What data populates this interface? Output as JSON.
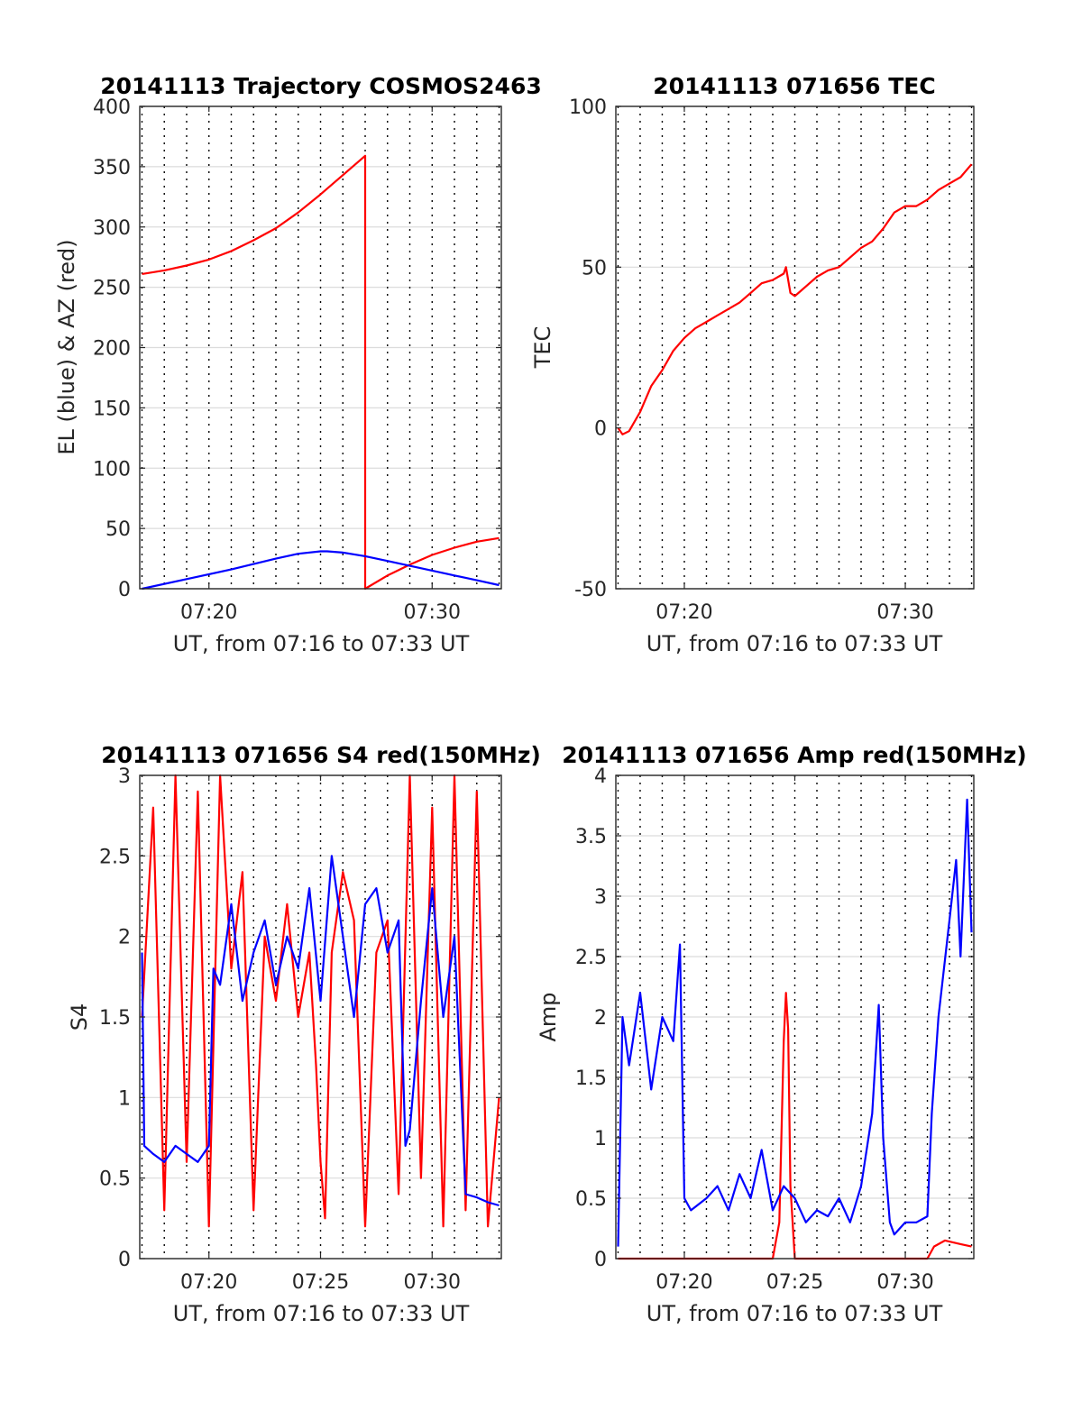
{
  "chart_data": [
    {
      "type": "line",
      "title": "20141113 Trajectory COSMOS2463",
      "xlabel": "UT, from 07:16 to 07:33 UT",
      "ylabel": "EL (blue) & AZ (red)",
      "xlim": [
        16.9,
        33.1
      ],
      "ylim": [
        0,
        400
      ],
      "xticks": [
        20,
        30
      ],
      "xtick_labels": [
        "07:20",
        "07:30"
      ],
      "yticks": [
        0,
        50,
        100,
        150,
        200,
        250,
        300,
        350,
        400
      ],
      "ytick_labels": [
        "0",
        "50",
        "100",
        "150",
        "200",
        "250",
        "300",
        "350",
        "400"
      ],
      "grid": true,
      "series": [
        {
          "color": "#ff0000",
          "x": [
            17.0,
            18.0,
            19.0,
            20.0,
            21.0,
            22.0,
            23.0,
            24.0,
            25.0,
            26.0,
            27.0,
            27.0,
            27.0,
            28.0,
            29.0,
            30.0,
            31.0,
            32.0,
            33.0
          ],
          "y": [
            261,
            264,
            268,
            273,
            280,
            289,
            299,
            312,
            327,
            343,
            359,
            359,
            0,
            11,
            20,
            28,
            34,
            39,
            42
          ]
        },
        {
          "color": "#0000ff",
          "x": [
            17.0,
            19.0,
            21.0,
            23.0,
            24.0,
            25.0,
            25.3,
            26.0,
            27.0,
            28.0,
            29.0,
            30.0,
            31.0,
            32.0,
            33.0
          ],
          "y": [
            0,
            8,
            16,
            25,
            29,
            31,
            31,
            30,
            27,
            23,
            19,
            15,
            11,
            7,
            3
          ]
        }
      ]
    },
    {
      "type": "line",
      "title": "20141113 071656 TEC",
      "xlabel": "UT, from 07:16 to 07:33 UT",
      "ylabel": "TEC",
      "xlim": [
        16.9,
        33.1
      ],
      "ylim": [
        -50,
        100
      ],
      "xticks": [
        20,
        30
      ],
      "xtick_labels": [
        "07:20",
        "07:30"
      ],
      "yticks": [
        -50,
        0,
        50,
        100
      ],
      "ytick_labels": [
        "-50",
        "0",
        "50",
        "100"
      ],
      "grid": true,
      "series": [
        {
          "color": "#ff0000",
          "x": [
            17.0,
            17.2,
            17.5,
            18.0,
            18.5,
            19.0,
            19.5,
            20.0,
            20.5,
            21.0,
            21.5,
            22.0,
            22.5,
            23.0,
            23.5,
            24.0,
            24.5,
            24.6,
            24.8,
            25.0,
            25.5,
            26.0,
            26.5,
            27.0,
            27.5,
            28.0,
            28.5,
            29.0,
            29.5,
            30.0,
            30.5,
            31.0,
            31.5,
            32.0,
            32.5,
            33.0
          ],
          "y": [
            0,
            -2,
            -1,
            5,
            13,
            18,
            24,
            28,
            31,
            33,
            35,
            37,
            39,
            42,
            45,
            46,
            48,
            50,
            42,
            41,
            44,
            47,
            49,
            50,
            53,
            56,
            58,
            62,
            67,
            69,
            69,
            71,
            74,
            76,
            78,
            82
          ]
        }
      ]
    },
    {
      "type": "line",
      "title": "20141113 071656 S4 red(150MHz)",
      "xlabel": "UT, from 07:16 to 07:33 UT",
      "ylabel": "S4",
      "xlim": [
        16.9,
        33.1
      ],
      "ylim": [
        0,
        3
      ],
      "xticks": [
        20,
        25,
        30
      ],
      "xtick_labels": [
        "07:20",
        "07:25",
        "07:30"
      ],
      "yticks": [
        0,
        0.5,
        1,
        1.5,
        2,
        2.5,
        3
      ],
      "ytick_labels": [
        "0",
        "0.5",
        "1",
        "1.5",
        "2",
        "2.5",
        "3"
      ],
      "grid": true,
      "series": [
        {
          "color": "#ff0000",
          "x": [
            17.0,
            17.5,
            18.0,
            18.5,
            19.0,
            19.5,
            20.0,
            20.5,
            21.0,
            21.5,
            22.0,
            22.5,
            23.0,
            23.5,
            24.0,
            24.5,
            24.8,
            25.0,
            25.2,
            25.5,
            26.0,
            26.5,
            27.0,
            27.5,
            28.0,
            28.5,
            29.0,
            29.5,
            30.0,
            30.5,
            31.0,
            31.5,
            32.0,
            32.5,
            33.0
          ],
          "y": [
            1.5,
            2.8,
            0.3,
            3.0,
            0.6,
            2.9,
            0.2,
            3.0,
            1.8,
            2.4,
            0.3,
            2.0,
            1.6,
            2.2,
            1.5,
            1.9,
            1.2,
            0.6,
            0.25,
            1.9,
            2.4,
            2.1,
            0.2,
            1.9,
            2.1,
            0.4,
            3.0,
            0.5,
            2.8,
            0.2,
            3.0,
            0.3,
            2.9,
            0.2,
            1.0
          ]
        },
        {
          "color": "#0000ff",
          "x": [
            17.0,
            17.1,
            17.5,
            18.0,
            18.5,
            19.0,
            19.5,
            20.0,
            20.2,
            20.5,
            21.0,
            21.5,
            22.0,
            22.5,
            23.0,
            23.5,
            24.0,
            24.5,
            25.0,
            25.5,
            26.0,
            26.5,
            27.0,
            27.5,
            28.0,
            28.5,
            28.8,
            29.0,
            29.5,
            30.0,
            30.5,
            31.0,
            31.5,
            32.0,
            32.5,
            33.0
          ],
          "y": [
            1.9,
            0.7,
            0.65,
            0.6,
            0.7,
            0.65,
            0.6,
            0.7,
            1.8,
            1.7,
            2.2,
            1.6,
            1.9,
            2.1,
            1.7,
            2.0,
            1.8,
            2.3,
            1.6,
            2.5,
            2.0,
            1.5,
            2.2,
            2.3,
            1.9,
            2.1,
            0.7,
            0.8,
            1.6,
            2.3,
            1.5,
            2.0,
            0.4,
            0.38,
            0.35,
            0.33
          ]
        }
      ]
    },
    {
      "type": "line",
      "title": "20141113 071656 Amp red(150MHz)",
      "xlabel": "UT, from 07:16 to 07:33 UT",
      "ylabel": "Amp",
      "xlim": [
        16.9,
        33.1
      ],
      "ylim": [
        0,
        4
      ],
      "xticks": [
        20,
        25,
        30
      ],
      "xtick_labels": [
        "07:20",
        "07:25",
        "07:30"
      ],
      "yticks": [
        0,
        0.5,
        1,
        1.5,
        2,
        2.5,
        3,
        3.5,
        4
      ],
      "ytick_labels": [
        "0",
        "0.5",
        "1",
        "1.5",
        "2",
        "2.5",
        "3",
        "3.5",
        "4"
      ],
      "grid": true,
      "series": [
        {
          "color": "#ff0000",
          "x": [
            17.0,
            24.0,
            24.3,
            24.5,
            24.6,
            24.7,
            24.8,
            25.0,
            30.0,
            31.0,
            31.3,
            31.8,
            32.5,
            33.0
          ],
          "y": [
            0,
            0,
            0.3,
            1.8,
            2.2,
            1.9,
            0.6,
            0,
            0,
            0,
            0.1,
            0.15,
            0.12,
            0.1
          ]
        },
        {
          "color": "#0000ff",
          "x": [
            17.0,
            17.2,
            17.5,
            18.0,
            18.5,
            19.0,
            19.5,
            19.8,
            20.0,
            20.3,
            21.0,
            21.5,
            22.0,
            22.5,
            23.0,
            23.5,
            24.0,
            24.5,
            25.0,
            25.5,
            26.0,
            26.5,
            27.0,
            27.5,
            28.0,
            28.5,
            28.8,
            29.0,
            29.3,
            29.5,
            30.0,
            30.5,
            31.0,
            31.2,
            31.5,
            32.0,
            32.3,
            32.5,
            32.8,
            33.0
          ],
          "y": [
            0.1,
            2.0,
            1.6,
            2.2,
            1.4,
            2.0,
            1.8,
            2.6,
            0.5,
            0.4,
            0.5,
            0.6,
            0.4,
            0.7,
            0.5,
            0.9,
            0.4,
            0.6,
            0.5,
            0.3,
            0.4,
            0.35,
            0.5,
            0.3,
            0.6,
            1.2,
            2.1,
            1.0,
            0.3,
            0.2,
            0.3,
            0.3,
            0.35,
            1.2,
            2.0,
            2.8,
            3.3,
            2.5,
            3.8,
            2.7
          ]
        }
      ]
    }
  ]
}
